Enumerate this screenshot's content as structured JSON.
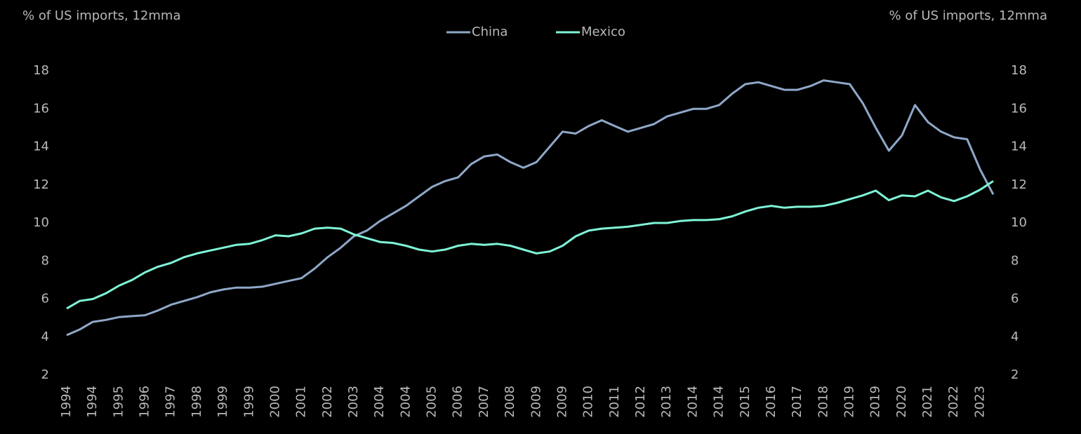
{
  "chart_data": {
    "type": "line",
    "y_label": "% of US imports, 12mma",
    "y2_label": "% of US imports, 12mma",
    "categories": [
      "1994",
      null,
      "1994",
      null,
      "1995",
      null,
      "1996",
      null,
      "1997",
      null,
      "1998",
      null,
      "1999",
      null,
      "1999",
      null,
      "2000",
      null,
      "2001",
      null,
      "2002",
      null,
      "2003",
      null,
      "2004",
      null,
      "2004",
      null,
      "2005",
      null,
      "2006",
      null,
      "2007",
      null,
      "2008",
      null,
      "2009",
      null,
      "2009",
      null,
      "2010",
      null,
      "2011",
      null,
      "2012",
      null,
      "2013",
      null,
      "2014",
      null,
      "2014",
      null,
      "2015",
      null,
      "2016",
      null,
      "2017",
      null,
      "2018",
      null,
      "2019",
      null,
      "2019",
      null,
      "2020",
      null,
      "2021",
      null,
      "2022",
      null,
      "2023",
      null
    ],
    "series": [
      {
        "name": "China",
        "color": "#8fa8c8",
        "values": [
          4.1,
          4.4,
          4.8,
          4.9,
          5.05,
          5.1,
          5.15,
          5.4,
          5.7,
          5.9,
          6.1,
          6.35,
          6.5,
          6.6,
          6.6,
          6.65,
          6.8,
          6.95,
          7.1,
          7.6,
          8.2,
          8.7,
          9.3,
          9.6,
          10.1,
          10.5,
          10.9,
          11.4,
          11.9,
          12.2,
          12.4,
          13.1,
          13.5,
          13.6,
          13.2,
          12.9,
          13.2,
          14.0,
          14.8,
          14.7,
          15.1,
          15.4,
          15.1,
          14.8,
          15.0,
          15.2,
          15.6,
          15.8,
          16.0,
          16.0,
          16.2,
          16.8,
          17.3,
          17.4,
          17.2,
          17.0,
          17.0,
          17.2,
          17.5,
          17.4,
          17.3,
          16.3,
          15.0,
          13.8,
          14.6,
          16.2,
          15.3,
          14.8,
          14.5,
          14.4,
          12.8,
          11.5
        ]
      },
      {
        "name": "Mexico",
        "color": "#7ff5d8",
        "axis": "y2",
        "values": [
          5.5,
          5.9,
          6.0,
          6.3,
          6.7,
          7.0,
          7.4,
          7.7,
          7.9,
          8.2,
          8.4,
          8.55,
          8.7,
          8.85,
          8.9,
          9.1,
          9.35,
          9.3,
          9.45,
          9.7,
          9.75,
          9.7,
          9.4,
          9.2,
          9.0,
          8.95,
          8.8,
          8.6,
          8.5,
          8.6,
          8.8,
          8.9,
          8.85,
          8.9,
          8.8,
          8.6,
          8.4,
          8.5,
          8.8,
          9.3,
          9.6,
          9.7,
          9.75,
          9.8,
          9.9,
          10.0,
          10.0,
          10.1,
          10.15,
          10.15,
          10.2,
          10.35,
          10.6,
          10.8,
          10.9,
          10.8,
          10.85,
          10.85,
          10.9,
          11.05,
          11.25,
          11.45,
          11.7,
          11.2,
          11.45,
          11.4,
          11.7,
          11.35,
          11.15,
          11.4,
          11.75,
          12.2
        ]
      }
    ],
    "ylim": [
      2,
      18
    ],
    "yticks": [
      2,
      4,
      6,
      8,
      10,
      12,
      14,
      16,
      18
    ],
    "y2lim": [
      2,
      18
    ],
    "y2ticks": [
      2,
      4,
      6,
      8,
      10,
      12,
      14,
      16,
      18
    ],
    "legend": "top",
    "grid": false
  }
}
